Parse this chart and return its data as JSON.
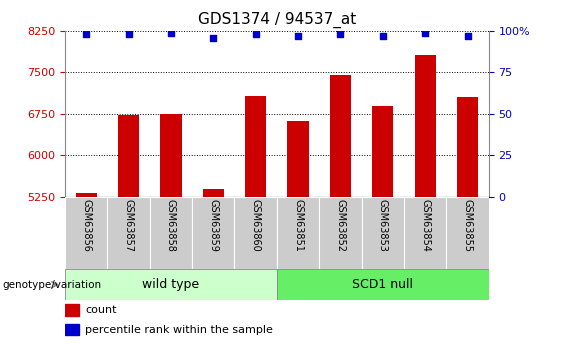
{
  "title": "GDS1374 / 94537_at",
  "categories": [
    "GSM63856",
    "GSM63857",
    "GSM63858",
    "GSM63859",
    "GSM63860",
    "GSM63851",
    "GSM63852",
    "GSM63853",
    "GSM63854",
    "GSM63855"
  ],
  "counts": [
    5320,
    6730,
    6740,
    5380,
    7080,
    6620,
    7460,
    6890,
    7820,
    7060
  ],
  "percentile_ranks": [
    98,
    98,
    99,
    96,
    98,
    97,
    98,
    97,
    99,
    97
  ],
  "groups": [
    {
      "label": "wild type",
      "start": 0,
      "end": 5,
      "color": "#ccffcc"
    },
    {
      "label": "SCD1 null",
      "start": 5,
      "end": 10,
      "color": "#66ee66"
    }
  ],
  "ylim_left": [
    5250,
    8250
  ],
  "ylim_right": [
    0,
    100
  ],
  "yticks_left": [
    5250,
    6000,
    6750,
    7500,
    8250
  ],
  "yticks_right": [
    0,
    25,
    50,
    75,
    100
  ],
  "bar_color": "#cc0000",
  "dot_color": "#0000cc",
  "grid_color": "#000000",
  "tick_label_bg": "#cccccc",
  "genotype_label": "genotype/variation",
  "legend_count_label": "count",
  "legend_pct_label": "percentile rank within the sample",
  "title_fontsize": 11,
  "axis_fontsize": 8,
  "bar_width": 0.5
}
